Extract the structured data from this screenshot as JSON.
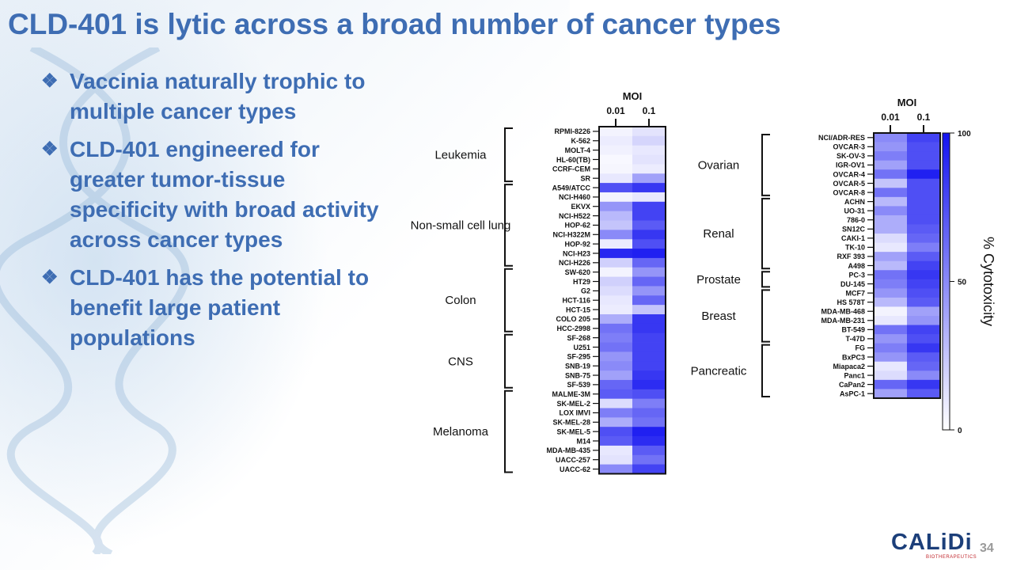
{
  "title": "CLD-401 is lytic across a broad number of cancer types",
  "bullet_mark": "❖",
  "bullets": [
    "Vaccinia naturally trophic to multiple cancer types",
    "CLD-401 engineered for greater tumor-tissue specificity with broad activity across cancer types",
    "CLD-401 has the potential to benefit large patient populations"
  ],
  "logo": {
    "name": "CALiDi",
    "sub": "BIOTHERAPEUTICS"
  },
  "page_number": "34",
  "colors": {
    "title": "#3e6db3",
    "heat_high": "#1414f0",
    "heat_low": "#ffffff"
  },
  "chart_data": {
    "type": "heatmap",
    "value_label": "% Cytotoxicity",
    "colorbar_ticks": [
      "100",
      "50",
      "0"
    ],
    "vmin": 0,
    "vmax": 100,
    "panels": [
      {
        "column_header": "MOI",
        "columns": [
          "0.01",
          "0.1"
        ],
        "groups": [
          {
            "name": "Leukemia",
            "rows": [
              {
                "label": "RPMI-8226",
                "values": [
                  5,
                  12
                ]
              },
              {
                "label": "K-562",
                "values": [
                  8,
                  18
                ]
              },
              {
                "label": "MOLT-4",
                "values": [
                  6,
                  10
                ]
              },
              {
                "label": "HL-60(TB)",
                "values": [
                  3,
                  12
                ]
              },
              {
                "label": "CCRF-CEM",
                "values": [
                  4,
                  8
                ]
              },
              {
                "label": "SR",
                "values": [
                  10,
                  40
                ]
              }
            ]
          },
          {
            "name": "Non-small cell lung",
            "rows": [
              {
                "label": "A549/ATCC",
                "values": [
                  75,
                  85
                ]
              },
              {
                "label": "NCI-H460",
                "values": [
                  5,
                  10
                ]
              },
              {
                "label": "EKVX",
                "values": [
                  45,
                  80
                ]
              },
              {
                "label": "NCI-H522",
                "values": [
                  30,
                  80
                ]
              },
              {
                "label": "HOP-62",
                "values": [
                  25,
                  70
                ]
              },
              {
                "label": "NCI-H322M",
                "values": [
                  50,
                  85
                ]
              },
              {
                "label": "HOP-92",
                "values": [
                  8,
                  75
                ]
              },
              {
                "label": "NCI-H23",
                "values": [
                  92,
                  95
                ]
              },
              {
                "label": "NCI-H226",
                "values": [
                  20,
                  65
                ]
              }
            ]
          },
          {
            "name": "Colon",
            "rows": [
              {
                "label": "SW-620",
                "values": [
                  5,
                  45
                ]
              },
              {
                "label": "HT29",
                "values": [
                  20,
                  65
                ]
              },
              {
                "label": "G2",
                "values": [
                  15,
                  45
                ]
              },
              {
                "label": "HCT-116",
                "values": [
                  10,
                  65
                ]
              },
              {
                "label": "HCT-15",
                "values": [
                  8,
                  25
                ]
              },
              {
                "label": "COLO 205",
                "values": [
                  35,
                  85
                ]
              },
              {
                "label": "HCC-2998",
                "values": [
                  60,
                  85
                ]
              }
            ]
          },
          {
            "name": "CNS",
            "rows": [
              {
                "label": "SF-268",
                "values": [
                  55,
                  80
                ]
              },
              {
                "label": "U251",
                "values": [
                  60,
                  80
                ]
              },
              {
                "label": "SF-295",
                "values": [
                  45,
                  80
                ]
              },
              {
                "label": "SNB-19",
                "values": [
                  50,
                  80
                ]
              },
              {
                "label": "SNB-75",
                "values": [
                  40,
                  85
                ]
              },
              {
                "label": "SF-539",
                "values": [
                  65,
                  90
                ]
              }
            ]
          },
          {
            "name": "Melanoma",
            "rows": [
              {
                "label": "MALME-3M",
                "values": [
                  70,
                  75
                ]
              },
              {
                "label": "SK-MEL-2",
                "values": [
                  15,
                  55
                ]
              },
              {
                "label": "LOX IMVI",
                "values": [
                  55,
                  65
                ]
              },
              {
                "label": "SK-MEL-28",
                "values": [
                  35,
                  60
                ]
              },
              {
                "label": "SK-MEL-5",
                "values": [
                  75,
                  95
                ]
              },
              {
                "label": "M14",
                "values": [
                  70,
                  90
                ]
              },
              {
                "label": "MDA-MB-435",
                "values": [
                  10,
                  70
                ]
              },
              {
                "label": "UACC-257",
                "values": [
                  12,
                  60
                ]
              },
              {
                "label": "UACC-62",
                "values": [
                  50,
                  80
                ]
              }
            ]
          }
        ]
      },
      {
        "column_header": "MOI",
        "columns": [
          "0.01",
          "0.1"
        ],
        "groups": [
          {
            "name": "Ovarian",
            "rows": [
              {
                "label": "NCI/ADR-RES",
                "values": [
                  50,
                  80
                ]
              },
              {
                "label": "OVCAR-3",
                "values": [
                  45,
                  75
                ]
              },
              {
                "label": "SK-OV-3",
                "values": [
                  55,
                  75
                ]
              },
              {
                "label": "IGR-OV1",
                "values": [
                  40,
                  75
                ]
              },
              {
                "label": "OVCAR-4",
                "values": [
                  60,
                  95
                ]
              },
              {
                "label": "OVCAR-5",
                "values": [
                  25,
                  75
                ]
              },
              {
                "label": "OVCAR-8",
                "values": [
                  60,
                  75
                ]
              }
            ]
          },
          {
            "name": "Renal",
            "rows": [
              {
                "label": "ACHN",
                "values": [
                  30,
                  75
                ]
              },
              {
                "label": "UO-31",
                "values": [
                  50,
                  75
                ]
              },
              {
                "label": "786-0",
                "values": [
                  35,
                  75
                ]
              },
              {
                "label": "SN12C",
                "values": [
                  35,
                  70
                ]
              },
              {
                "label": "CAKI-1",
                "values": [
                  15,
                  65
                ]
              },
              {
                "label": "TK-10",
                "values": [
                  10,
                  55
                ]
              },
              {
                "label": "RXF 393",
                "values": [
                  40,
                  70
                ]
              },
              {
                "label": "A498",
                "values": [
                  30,
                  80
                ]
              }
            ]
          },
          {
            "name": "Prostate",
            "rows": [
              {
                "label": "PC-3",
                "values": [
                  60,
                  85
                ]
              },
              {
                "label": "DU-145",
                "values": [
                  55,
                  80
                ]
              }
            ]
          },
          {
            "name": "Breast",
            "rows": [
              {
                "label": "MCF7",
                "values": [
                  45,
                  75
                ]
              },
              {
                "label": "HS 578T",
                "values": [
                  30,
                  70
                ]
              },
              {
                "label": "MDA-MB-468",
                "values": [
                  5,
                  40
                ]
              },
              {
                "label": "MDA-MB-231",
                "values": [
                  10,
                  45
                ]
              },
              {
                "label": "BT-549",
                "values": [
                  60,
                  80
                ]
              },
              {
                "label": "T-47D",
                "values": [
                  45,
                  75
                ]
              }
            ]
          },
          {
            "name": "Pancreatic",
            "rows": [
              {
                "label": "FG",
                "values": [
                  55,
                  85
                ]
              },
              {
                "label": "BxPC3",
                "values": [
                  45,
                  70
                ]
              },
              {
                "label": "Miapaca2",
                "values": [
                  10,
                  65
                ]
              },
              {
                "label": "Panc1",
                "values": [
                  15,
                  50
                ]
              },
              {
                "label": "CaPan2",
                "values": [
                  65,
                  85
                ]
              },
              {
                "label": "AsPC-1",
                "values": [
                  40,
                  70
                ]
              }
            ]
          }
        ]
      }
    ]
  }
}
